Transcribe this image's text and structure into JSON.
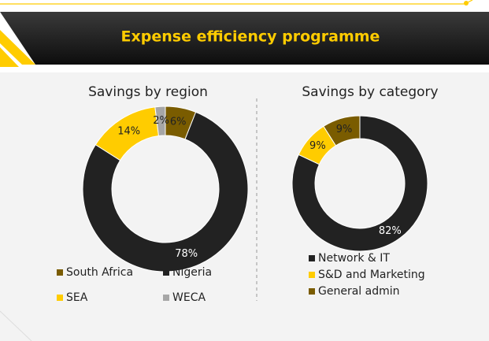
{
  "title": "Expense efficiency programme",
  "chart_data": [
    {
      "type": "donut",
      "title": "Savings by region",
      "categories": [
        "South Africa",
        "Nigeria",
        "SEA",
        "WECA"
      ],
      "values": [
        6,
        78,
        14,
        2
      ],
      "value_labels": [
        "6%",
        "78%",
        "14%",
        "2%"
      ],
      "colors": [
        "#7a5c00",
        "#222222",
        "#ffcc00",
        "#a6a6a6"
      ]
    },
    {
      "type": "donut",
      "title": "Savings by category",
      "categories": [
        "Network & IT",
        "S&D and Marketing",
        "General admin"
      ],
      "values": [
        82,
        9,
        9
      ],
      "value_labels": [
        "82%",
        "9%",
        "9%"
      ],
      "colors": [
        "#222222",
        "#ffcc00",
        "#7a5c00"
      ]
    }
  ]
}
